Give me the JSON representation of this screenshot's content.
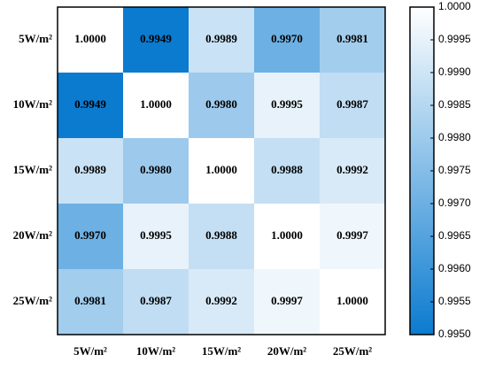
{
  "chart_data": {
    "type": "heatmap",
    "categories": [
      "5W/m²",
      "10W/m²",
      "15W/m²",
      "20W/m²",
      "25W/m²"
    ],
    "values": [
      [
        1.0,
        0.9949,
        0.9989,
        0.997,
        0.9981
      ],
      [
        0.9949,
        1.0,
        0.998,
        0.9995,
        0.9987
      ],
      [
        0.9989,
        0.998,
        1.0,
        0.9988,
        0.9992
      ],
      [
        0.997,
        0.9995,
        0.9988,
        1.0,
        0.9997
      ],
      [
        0.9981,
        0.9987,
        0.9992,
        0.9997,
        1.0
      ]
    ],
    "value_labels": [
      [
        "1.0000",
        "0.9949",
        "0.9989",
        "0.9970",
        "0.9981"
      ],
      [
        "0.9949",
        "1.0000",
        "0.9980",
        "0.9995",
        "0.9987"
      ],
      [
        "0.9989",
        "0.9980",
        "1.0000",
        "0.9988",
        "0.9992"
      ],
      [
        "0.9970",
        "0.9995",
        "0.9988",
        "1.0000",
        "0.9997"
      ],
      [
        "0.9981",
        "0.9987",
        "0.9992",
        "0.9997",
        "1.0000"
      ]
    ],
    "clim": [
      0.995,
      1.0
    ],
    "cticks": [
      {
        "value": 0.995,
        "label": "0.9950"
      },
      0.9955,
      {
        "value": 0.996,
        "label": "0.9960"
      },
      0.9965,
      {
        "value": 0.997,
        "label": "0.9970"
      },
      0.9975,
      {
        "value": 0.998,
        "label": "0.9980"
      },
      0.9985,
      {
        "value": 0.999,
        "label": "0.9990"
      },
      0.9995,
      {
        "value": 1.0,
        "label": "1.0000"
      }
    ],
    "colormap": [
      "#0b7bd0",
      "#ffffff"
    ]
  }
}
